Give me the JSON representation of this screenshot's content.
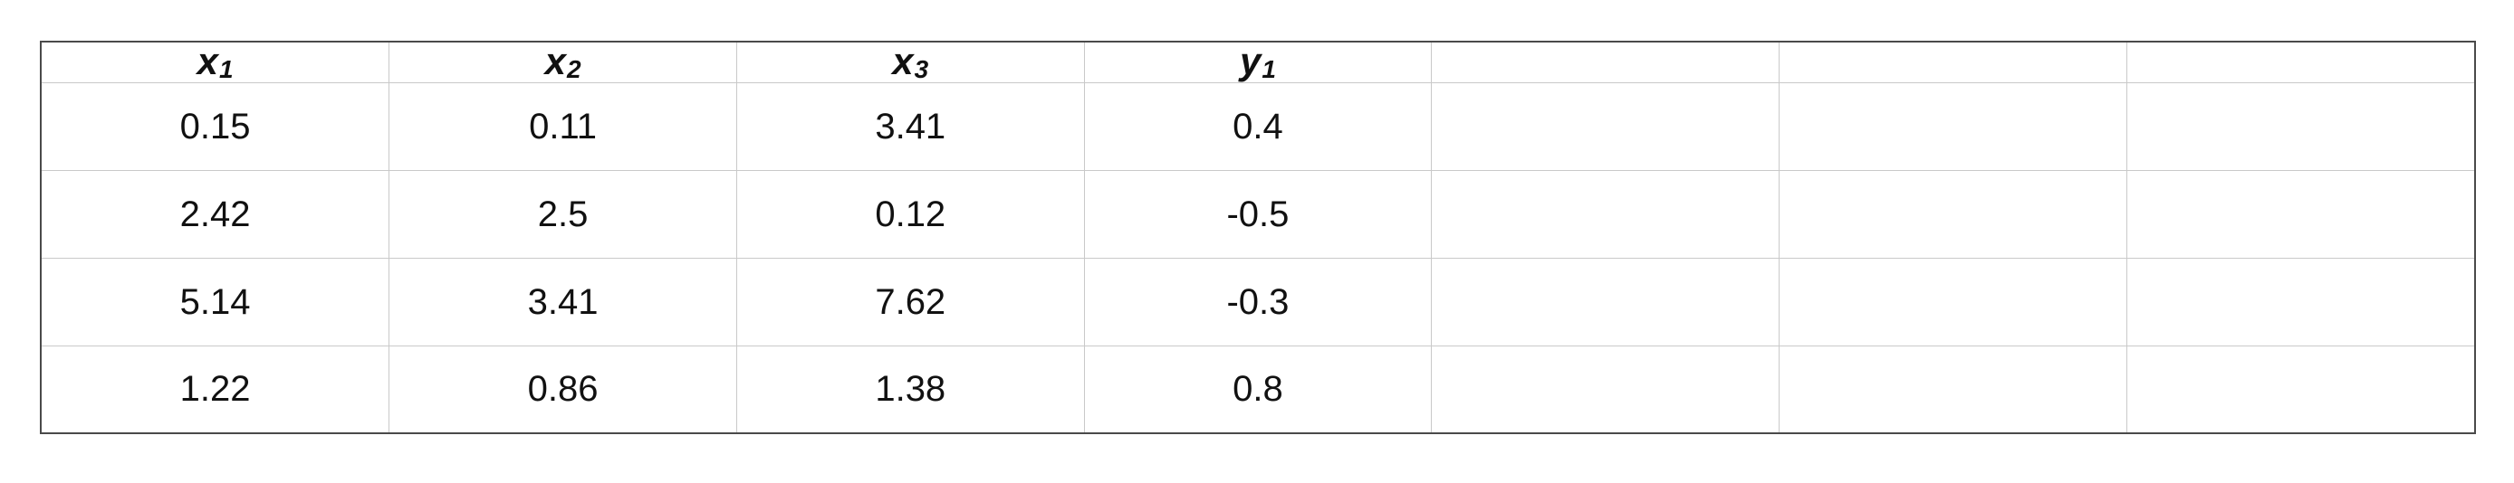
{
  "table": {
    "headers": [
      {
        "base": "x",
        "sub": "1"
      },
      {
        "base": "x",
        "sub": "2"
      },
      {
        "base": "x",
        "sub": "3"
      },
      {
        "base": "y",
        "sub": "1"
      },
      {
        "base": "",
        "sub": ""
      },
      {
        "base": "",
        "sub": ""
      },
      {
        "base": "",
        "sub": ""
      }
    ],
    "rows": [
      [
        "0.15",
        "0.11",
        "3.41",
        "0.4",
        "",
        "",
        ""
      ],
      [
        "2.42",
        "2.5",
        "0.12",
        "-0.5",
        "",
        "",
        ""
      ],
      [
        "5.14",
        "3.41",
        "7.62",
        "-0.3",
        "",
        "",
        ""
      ],
      [
        "1.22",
        "0.86",
        "1.38",
        "0.8",
        "",
        "",
        ""
      ]
    ]
  }
}
